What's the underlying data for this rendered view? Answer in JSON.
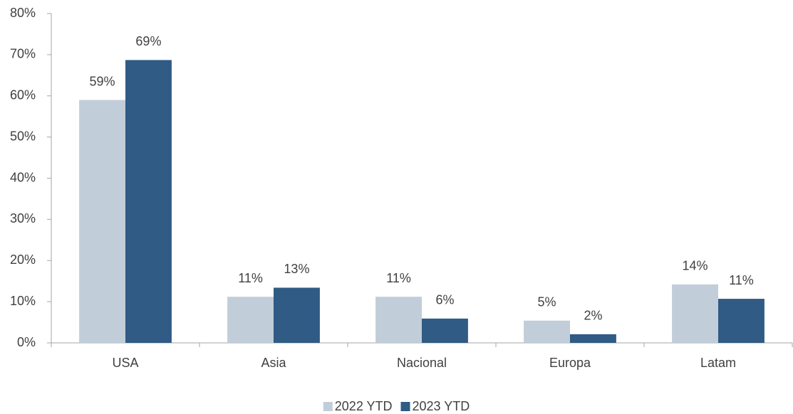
{
  "chart_data": {
    "type": "bar",
    "categories": [
      "USA",
      "Asia",
      "Nacional",
      "Europa",
      "Latam"
    ],
    "series": [
      {
        "name": "2022 YTD",
        "color": "#c1cdd9",
        "values": [
          59,
          11.2,
          11.2,
          5.4,
          14.2
        ],
        "value_labels": [
          "59%",
          "11%",
          "11%",
          "5%",
          "14%"
        ]
      },
      {
        "name": "2023 YTD",
        "color": "#2f5b84",
        "values": [
          68.7,
          13.4,
          5.9,
          2.1,
          10.7
        ],
        "value_labels": [
          "69%",
          "13%",
          "6%",
          "2%",
          "11%"
        ]
      }
    ],
    "ylim": [
      0,
      80
    ],
    "yticks": [
      {
        "value": 0,
        "label": "0%"
      },
      {
        "value": 10,
        "label": "10%"
      },
      {
        "value": 20,
        "label": "20%"
      },
      {
        "value": 30,
        "label": "30%"
      },
      {
        "value": 40,
        "label": "40%"
      },
      {
        "value": 50,
        "label": "50%"
      },
      {
        "value": 60,
        "label": "60%"
      },
      {
        "value": 70,
        "label": "70%"
      },
      {
        "value": 80,
        "label": "80%"
      }
    ],
    "grid": false,
    "legend": "bottom"
  }
}
